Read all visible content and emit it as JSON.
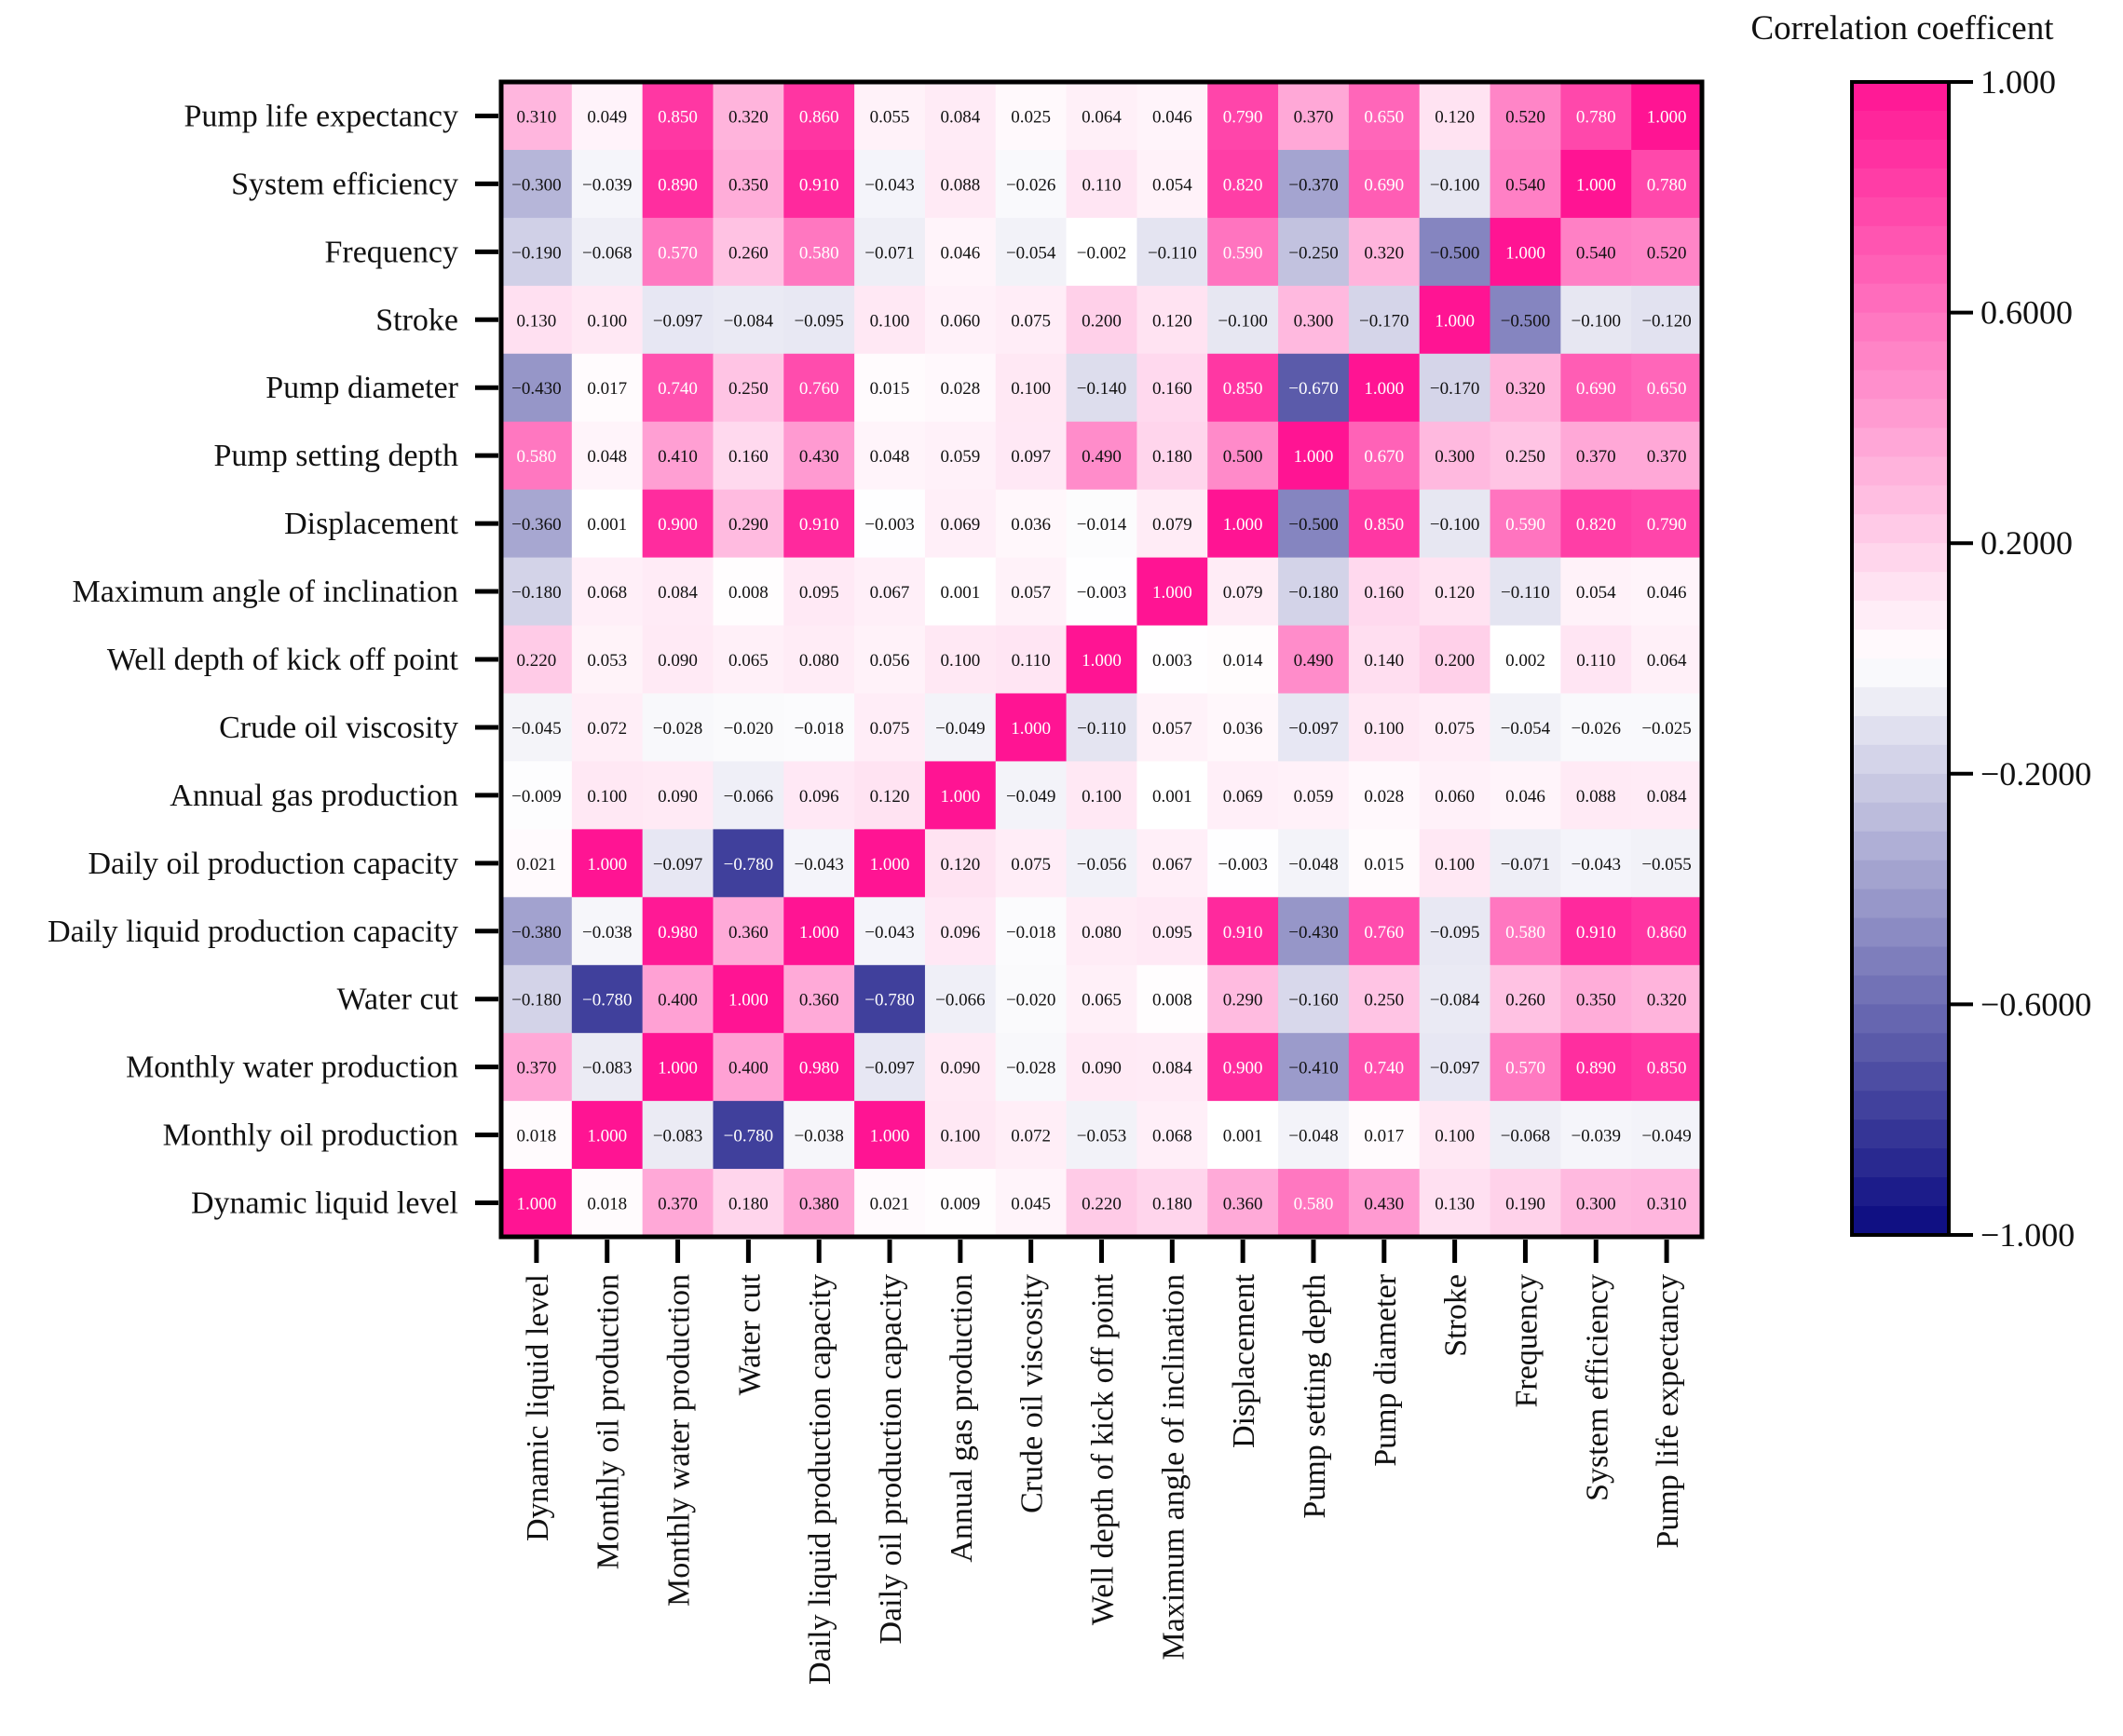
{
  "chart_data": {
    "type": "heatmap",
    "title": "",
    "colorbar_title": "Correlation coefficent",
    "colorbar_ticks": [
      "1.000",
      "0.6000",
      "0.2000",
      "−0.2000",
      "−0.6000",
      "−1.000"
    ],
    "colorbar_tick_values": [
      1,
      0.6,
      0.2,
      -0.2,
      -0.6,
      -1
    ],
    "vmin": -1,
    "vmax": 1,
    "colors": {
      "negative": "#0a0a80",
      "neutral": "#ffffff",
      "positive": "#ff1493",
      "text_dark": "#111111",
      "text_light": "#ffffff"
    },
    "rows": [
      "Pump life expectancy",
      "System efficiency",
      "Frequency",
      "Stroke",
      "Pump diameter",
      "Pump setting depth",
      "Displacement",
      "Maximum angle of inclination",
      "Well depth of kick off point",
      "Crude oil viscosity",
      "Annual gas production",
      "Daily oil production capacity",
      "Daily liquid production capacity",
      "Water cut",
      "Monthly water production",
      "Monthly oil production",
      "Dynamic liquid level"
    ],
    "columns": [
      "Dynamic liquid level",
      "Monthly oil production",
      "Monthly water production",
      "Water cut",
      "Daily liquid production capacity",
      "Daily oil production capacity",
      "Annual gas production",
      "Crude oil viscosity",
      "Well depth of kick off point",
      "Maximum angle of inclination",
      "Displacement",
      "Pump setting depth",
      "Pump diameter",
      "Stroke",
      "Frequency",
      "System efficiency",
      "Pump life expectancy"
    ],
    "values": [
      [
        0.31,
        0.049,
        0.85,
        0.32,
        0.86,
        0.055,
        0.084,
        0.025,
        0.064,
        0.046,
        0.79,
        0.37,
        0.65,
        0.12,
        0.52,
        0.78,
        1.0
      ],
      [
        -0.3,
        -0.039,
        0.89,
        0.35,
        0.91,
        -0.043,
        0.088,
        -0.026,
        0.11,
        0.054,
        0.82,
        -0.37,
        0.69,
        -0.1,
        0.54,
        1.0,
        0.78
      ],
      [
        -0.19,
        -0.068,
        0.57,
        0.26,
        0.58,
        -0.071,
        0.046,
        -0.054,
        -0.002,
        -0.11,
        0.59,
        -0.25,
        0.32,
        -0.5,
        1.0,
        0.54,
        0.52
      ],
      [
        0.13,
        0.1,
        -0.097,
        -0.084,
        -0.095,
        0.1,
        0.06,
        0.075,
        0.2,
        0.12,
        -0.1,
        0.3,
        -0.17,
        1.0,
        -0.5,
        -0.1,
        -0.12
      ],
      [
        -0.43,
        0.017,
        0.74,
        0.25,
        0.76,
        0.015,
        0.028,
        0.1,
        -0.14,
        0.16,
        0.85,
        -0.67,
        1.0,
        -0.17,
        0.32,
        0.69,
        0.65
      ],
      [
        0.58,
        0.048,
        0.41,
        0.16,
        0.43,
        0.048,
        0.059,
        0.097,
        0.49,
        0.18,
        0.5,
        1.0,
        0.67,
        0.3,
        0.25,
        0.37,
        0.37
      ],
      [
        -0.36,
        0.001,
        0.9,
        0.29,
        0.91,
        -0.003,
        0.069,
        0.036,
        -0.014,
        0.079,
        1.0,
        -0.5,
        0.85,
        -0.1,
        0.59,
        0.82,
        0.79
      ],
      [
        -0.18,
        0.068,
        0.084,
        0.008,
        0.095,
        0.067,
        0.001,
        0.057,
        -0.003,
        1.0,
        0.079,
        -0.18,
        0.16,
        0.12,
        -0.11,
        0.054,
        0.046
      ],
      [
        0.22,
        0.053,
        0.09,
        0.065,
        0.08,
        0.056,
        0.1,
        0.11,
        1.0,
        0.003,
        0.014,
        0.49,
        0.14,
        0.2,
        0.002,
        0.11,
        0.064
      ],
      [
        -0.045,
        0.072,
        -0.028,
        -0.02,
        -0.018,
        0.075,
        -0.049,
        1.0,
        -0.11,
        0.057,
        0.036,
        -0.097,
        0.1,
        0.075,
        -0.054,
        -0.026,
        -0.025
      ],
      [
        -0.009,
        0.1,
        0.09,
        -0.066,
        0.096,
        0.12,
        1.0,
        -0.049,
        0.1,
        0.001,
        0.069,
        0.059,
        0.028,
        0.06,
        0.046,
        0.088,
        0.084
      ],
      [
        0.021,
        1.0,
        -0.097,
        -0.78,
        -0.043,
        1.0,
        0.12,
        0.075,
        -0.056,
        0.067,
        -0.003,
        -0.048,
        0.015,
        0.1,
        -0.071,
        -0.043,
        -0.055
      ],
      [
        -0.38,
        -0.038,
        0.98,
        0.36,
        1.0,
        -0.043,
        0.096,
        -0.018,
        0.08,
        0.095,
        0.91,
        -0.43,
        0.76,
        -0.095,
        0.58,
        0.91,
        0.86
      ],
      [
        -0.18,
        -0.78,
        0.4,
        1.0,
        0.36,
        -0.78,
        -0.066,
        -0.02,
        0.065,
        0.008,
        0.29,
        -0.16,
        0.25,
        -0.084,
        0.26,
        0.35,
        0.32
      ],
      [
        0.37,
        -0.083,
        1.0,
        0.4,
        0.98,
        -0.097,
        0.09,
        -0.028,
        0.09,
        0.084,
        0.9,
        -0.41,
        0.74,
        -0.097,
        0.57,
        0.89,
        0.85
      ],
      [
        0.018,
        1.0,
        -0.083,
        -0.78,
        -0.038,
        1.0,
        0.1,
        0.072,
        -0.053,
        0.068,
        0.001,
        -0.048,
        0.017,
        0.1,
        -0.068,
        -0.039,
        -0.049
      ],
      [
        1.0,
        0.018,
        0.37,
        0.18,
        0.38,
        0.021,
        0.009,
        0.045,
        0.22,
        0.18,
        0.36,
        0.58,
        0.43,
        0.13,
        0.19,
        0.3,
        0.31
      ]
    ],
    "cell_labels": [
      [
        "0.310",
        "0.049",
        "0.850",
        "0.320",
        "0.860",
        "0.055",
        "0.084",
        "0.025",
        "0.064",
        "0.046",
        "0.790",
        "0.370",
        "0.650",
        "0.120",
        "0.520",
        "0.780",
        "1.000"
      ],
      [
        "−0.300",
        "−0.039",
        "0.890",
        "0.350",
        "0.910",
        "−0.043",
        "0.088",
        "−0.026",
        "0.110",
        "0.054",
        "0.820",
        "−0.370",
        "0.690",
        "−0.100",
        "0.540",
        "1.000",
        "0.780"
      ],
      [
        "−0.190",
        "−0.068",
        "0.570",
        "0.260",
        "0.580",
        "−0.071",
        "0.046",
        "−0.054",
        "−0.002",
        "−0.110",
        "0.590",
        "−0.250",
        "0.320",
        "−0.500",
        "1.000",
        "0.540",
        "0.520"
      ],
      [
        "0.130",
        "0.100",
        "−0.097",
        "−0.084",
        "−0.095",
        "0.100",
        "0.060",
        "0.075",
        "0.200",
        "0.120",
        "−0.100",
        "0.300",
        "−0.170",
        "1.000",
        "−0.500",
        "−0.100",
        "−0.120"
      ],
      [
        "−0.430",
        "0.017",
        "0.740",
        "0.250",
        "0.760",
        "0.015",
        "0.028",
        "0.100",
        "−0.140",
        "0.160",
        "0.850",
        "−0.670",
        "1.000",
        "−0.170",
        "0.320",
        "0.690",
        "0.650"
      ],
      [
        "0.580",
        "0.048",
        "0.410",
        "0.160",
        "0.430",
        "0.048",
        "0.059",
        "0.097",
        "0.490",
        "0.180",
        "0.500",
        "1.000",
        "0.670",
        "0.300",
        "0.250",
        "0.370",
        "0.370"
      ],
      [
        "−0.360",
        "0.001",
        "0.900",
        "0.290",
        "0.910",
        "−0.003",
        "0.069",
        "0.036",
        "−0.014",
        "0.079",
        "1.000",
        "−0.500",
        "0.850",
        "−0.100",
        "0.590",
        "0.820",
        "0.790"
      ],
      [
        "−0.180",
        "0.068",
        "0.084",
        "0.008",
        "0.095",
        "0.067",
        "0.001",
        "0.057",
        "−0.003",
        "1.000",
        "0.079",
        "−0.180",
        "0.160",
        "0.120",
        "−0.110",
        "0.054",
        "0.046"
      ],
      [
        "0.220",
        "0.053",
        "0.090",
        "0.065",
        "0.080",
        "0.056",
        "0.100",
        "0.110",
        "1.000",
        "0.003",
        "0.014",
        "0.490",
        "0.140",
        "0.200",
        "0.002",
        "0.110",
        "0.064"
      ],
      [
        "−0.045",
        "0.072",
        "−0.028",
        "−0.020",
        "−0.018",
        "0.075",
        "−0.049",
        "1.000",
        "−0.110",
        "0.057",
        "0.036",
        "−0.097",
        "0.100",
        "0.075",
        "−0.054",
        "−0.026",
        "−0.025"
      ],
      [
        "−0.009",
        "0.100",
        "0.090",
        "−0.066",
        "0.096",
        "0.120",
        "1.000",
        "−0.049",
        "0.100",
        "0.001",
        "0.069",
        "0.059",
        "0.028",
        "0.060",
        "0.046",
        "0.088",
        "0.084"
      ],
      [
        "0.021",
        "1.000",
        "−0.097",
        "−0.780",
        "−0.043",
        "1.000",
        "0.120",
        "0.075",
        "−0.056",
        "0.067",
        "−0.003",
        "−0.048",
        "0.015",
        "0.100",
        "−0.071",
        "−0.043",
        "−0.055"
      ],
      [
        "−0.380",
        "−0.038",
        "0.980",
        "0.360",
        "1.000",
        "−0.043",
        "0.096",
        "−0.018",
        "0.080",
        "0.095",
        "0.910",
        "−0.430",
        "0.760",
        "−0.095",
        "0.580",
        "0.910",
        "0.860"
      ],
      [
        "−0.180",
        "−0.780",
        "0.400",
        "1.000",
        "0.360",
        "−0.780",
        "−0.066",
        "−0.020",
        "0.065",
        "0.008",
        "0.290",
        "−0.160",
        "0.250",
        "−0.084",
        "0.260",
        "0.350",
        "0.320"
      ],
      [
        "0.370",
        "−0.083",
        "1.000",
        "0.400",
        "0.980",
        "−0.097",
        "0.090",
        "−0.028",
        "0.090",
        "0.084",
        "0.900",
        "−0.410",
        "0.740",
        "−0.097",
        "0.570",
        "0.890",
        "0.850"
      ],
      [
        "0.018",
        "1.000",
        "−0.083",
        "−0.780",
        "−0.038",
        "1.000",
        "0.100",
        "0.072",
        "−0.053",
        "0.068",
        "0.001",
        "−0.048",
        "0.017",
        "0.100",
        "−0.068",
        "−0.039",
        "−0.049"
      ],
      [
        "1.000",
        "0.018",
        "0.370",
        "0.180",
        "0.380",
        "0.021",
        "0.009",
        "0.045",
        "0.220",
        "0.180",
        "0.360",
        "0.580",
        "0.430",
        "0.130",
        "0.190",
        "0.300",
        "0.310"
      ]
    ]
  }
}
